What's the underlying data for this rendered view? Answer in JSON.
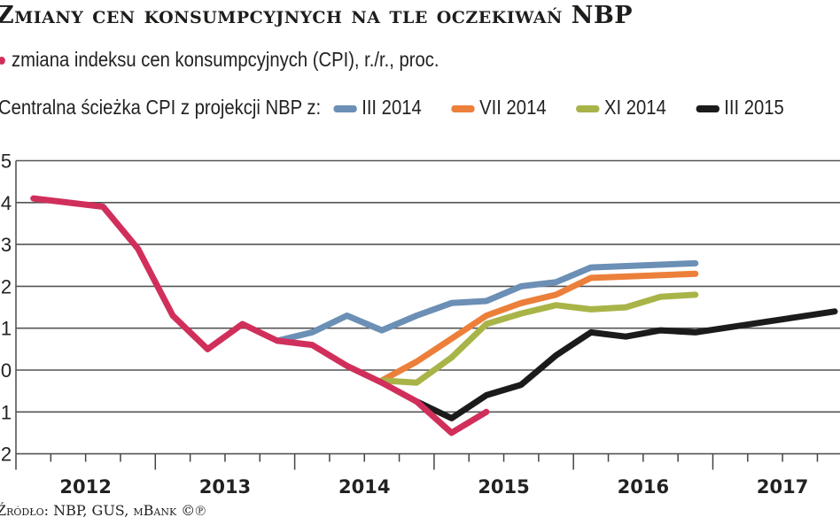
{
  "title": "Zmiany cen konsumpcyjnych na tle oczekiwań NBP",
  "legend": {
    "cpi_label": "zmiana indeksu cen konsumpcyjnych (CPI), r./r., proc.",
    "projection_prefix": "Centralna ścieżka CPI z projekcji NBP z:",
    "items": [
      {
        "label": "III 2014",
        "color": "#6b8fb5"
      },
      {
        "label": "VII 2014",
        "color": "#ec7f3a"
      },
      {
        "label": "XI 2014",
        "color": "#a9b448"
      },
      {
        "label": "III 2015",
        "color": "#1b1b1b"
      }
    ]
  },
  "source": "Źródło: NBP, GUS, mBank ©℗",
  "chart_data": {
    "type": "line",
    "title": "Zmiany cen konsumpcyjnych na tle oczekiwań NBP",
    "xlabel": "",
    "ylabel": "CPI r./r., proc.",
    "ylim": [
      -2,
      5
    ],
    "yticks": [
      5,
      4,
      3,
      2,
      1,
      0,
      -1,
      -2
    ],
    "xticks": [
      "2012",
      "2013",
      "2014",
      "2015",
      "2016",
      "2017"
    ],
    "grid": true,
    "x_unit": "quarter",
    "series": [
      {
        "name": "zmiana indeksu cen konsumpcyjnych (CPI), r./r., proc.",
        "color": "#d12f5b",
        "points": [
          [
            "2012Q1",
            4.1
          ],
          [
            "2012Q3",
            3.9
          ],
          [
            "2012Q4",
            2.9
          ],
          [
            "2013Q1",
            1.3
          ],
          [
            "2013Q2",
            0.5
          ],
          [
            "2013Q3",
            1.1
          ],
          [
            "2013Q4",
            0.7
          ],
          [
            "2014Q1",
            0.6
          ],
          [
            "2014Q2",
            0.1
          ],
          [
            "2014Q3",
            -0.3
          ],
          [
            "2014Q4",
            -0.75
          ],
          [
            "2015Q1",
            -1.5
          ],
          [
            "2015Q2",
            -1.0
          ]
        ]
      },
      {
        "name": "III 2014",
        "color": "#6b8fb5",
        "points": [
          [
            "2013Q4",
            0.7
          ],
          [
            "2014Q1",
            0.9
          ],
          [
            "2014Q2",
            1.3
          ],
          [
            "2014Q3",
            0.95
          ],
          [
            "2014Q4",
            1.3
          ],
          [
            "2015Q1",
            1.6
          ],
          [
            "2015Q2",
            1.65
          ],
          [
            "2015Q3",
            2.0
          ],
          [
            "2015Q4",
            2.1
          ],
          [
            "2016Q1",
            2.45
          ],
          [
            "2016Q4",
            2.55
          ]
        ]
      },
      {
        "name": "VII 2014",
        "color": "#ec7f3a",
        "points": [
          [
            "2014Q3",
            -0.25
          ],
          [
            "2014Q4",
            0.2
          ],
          [
            "2015Q1",
            0.75
          ],
          [
            "2015Q2",
            1.3
          ],
          [
            "2015Q3",
            1.6
          ],
          [
            "2015Q4",
            1.8
          ],
          [
            "2016Q1",
            2.2
          ],
          [
            "2016Q4",
            2.3
          ]
        ]
      },
      {
        "name": "XI 2014",
        "color": "#a9b448",
        "points": [
          [
            "2014Q3",
            -0.25
          ],
          [
            "2014Q4",
            -0.3
          ],
          [
            "2015Q1",
            0.3
          ],
          [
            "2015Q2",
            1.1
          ],
          [
            "2015Q3",
            1.35
          ],
          [
            "2015Q4",
            1.55
          ],
          [
            "2016Q1",
            1.45
          ],
          [
            "2016Q2",
            1.5
          ],
          [
            "2016Q3",
            1.75
          ],
          [
            "2016Q4",
            1.8
          ]
        ]
      },
      {
        "name": "III 2015",
        "color": "#1b1b1b",
        "points": [
          [
            "2014Q4",
            -0.75
          ],
          [
            "2015Q1",
            -1.15
          ],
          [
            "2015Q2",
            -0.6
          ],
          [
            "2015Q3",
            -0.35
          ],
          [
            "2015Q4",
            0.35
          ],
          [
            "2016Q1",
            0.9
          ],
          [
            "2016Q2",
            0.8
          ],
          [
            "2016Q3",
            0.95
          ],
          [
            "2016Q4",
            0.9
          ],
          [
            "2017Q4",
            1.4
          ]
        ]
      }
    ]
  }
}
